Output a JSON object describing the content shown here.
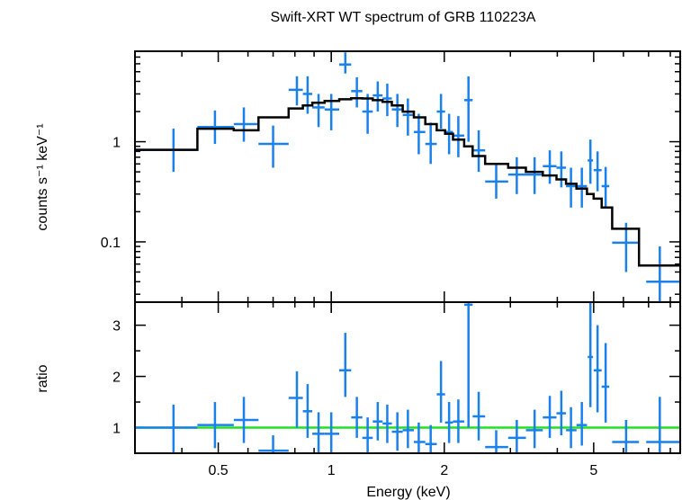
{
  "title": "Swift-XRT WT spectrum of GRB 110223A",
  "colors": {
    "data": "#1a80ec",
    "model": "#000000",
    "unity_line": "#22e022",
    "axes": "#000000"
  },
  "chart_data": [
    {
      "type": "scatter",
      "panel": "spectrum",
      "ylabel": "counts s⁻¹ keV⁻¹",
      "yscale": "log",
      "xscale": "log",
      "xlim": [
        0.3,
        8.5
      ],
      "ylim": [
        0.025,
        8.0
      ],
      "yticks": [
        {
          "value": 0.1,
          "label": "0.1"
        },
        {
          "value": 1,
          "label": "1"
        }
      ],
      "series": [
        {
          "kind": "data-errorbars",
          "points": [
            {
              "x": 0.38,
              "xlo": 0.3,
              "xhi": 0.44,
              "y": 0.83,
              "ylo": 0.5,
              "yhi": 1.35
            },
            {
              "x": 0.49,
              "xlo": 0.44,
              "xhi": 0.55,
              "y": 1.4,
              "ylo": 0.95,
              "yhi": 2.05
            },
            {
              "x": 0.585,
              "xlo": 0.55,
              "xhi": 0.64,
              "y": 1.5,
              "ylo": 1.0,
              "yhi": 2.2
            },
            {
              "x": 0.7,
              "xlo": 0.64,
              "xhi": 0.77,
              "y": 0.95,
              "ylo": 0.55,
              "yhi": 1.45
            },
            {
              "x": 0.81,
              "xlo": 0.77,
              "xhi": 0.84,
              "y": 3.3,
              "ylo": 2.3,
              "yhi": 4.5
            },
            {
              "x": 0.865,
              "xlo": 0.84,
              "xhi": 0.89,
              "y": 3.0,
              "ylo": 1.9,
              "yhi": 4.5
            },
            {
              "x": 0.925,
              "xlo": 0.89,
              "xhi": 0.96,
              "y": 2.2,
              "ylo": 1.4,
              "yhi": 3.0
            },
            {
              "x": 1.0,
              "xlo": 0.96,
              "xhi": 1.05,
              "y": 2.1,
              "ylo": 1.3,
              "yhi": 3.0
            },
            {
              "x": 1.09,
              "xlo": 1.05,
              "xhi": 1.13,
              "y": 5.9,
              "ylo": 4.8,
              "yhi": 7.8
            },
            {
              "x": 1.17,
              "xlo": 1.13,
              "xhi": 1.21,
              "y": 3.2,
              "ylo": 2.2,
              "yhi": 4.4
            },
            {
              "x": 1.25,
              "xlo": 1.21,
              "xhi": 1.29,
              "y": 2.0,
              "ylo": 1.2,
              "yhi": 3.0
            },
            {
              "x": 1.33,
              "xlo": 1.29,
              "xhi": 1.37,
              "y": 2.9,
              "ylo": 2.0,
              "yhi": 4.0
            },
            {
              "x": 1.41,
              "xlo": 1.37,
              "xhi": 1.45,
              "y": 2.7,
              "ylo": 1.8,
              "yhi": 3.8
            },
            {
              "x": 1.5,
              "xlo": 1.45,
              "xhi": 1.55,
              "y": 2.1,
              "ylo": 1.4,
              "yhi": 3.0
            },
            {
              "x": 1.6,
              "xlo": 1.55,
              "xhi": 1.66,
              "y": 1.85,
              "ylo": 1.15,
              "yhi": 2.7
            },
            {
              "x": 1.71,
              "xlo": 1.66,
              "xhi": 1.78,
              "y": 1.25,
              "ylo": 0.75,
              "yhi": 1.9
            },
            {
              "x": 1.84,
              "xlo": 1.78,
              "xhi": 1.91,
              "y": 0.95,
              "ylo": 0.6,
              "yhi": 1.55
            },
            {
              "x": 1.96,
              "xlo": 1.91,
              "xhi": 2.01,
              "y": 2.0,
              "ylo": 1.35,
              "yhi": 3.0
            },
            {
              "x": 2.06,
              "xlo": 2.01,
              "xhi": 2.11,
              "y": 1.25,
              "ylo": 0.75,
              "yhi": 1.9
            },
            {
              "x": 2.18,
              "xlo": 2.11,
              "xhi": 2.26,
              "y": 1.15,
              "ylo": 0.7,
              "yhi": 1.8
            },
            {
              "x": 2.32,
              "xlo": 2.26,
              "xhi": 2.38,
              "y": 2.6,
              "ylo": 1.0,
              "yhi": 4.5
            },
            {
              "x": 2.47,
              "xlo": 2.38,
              "xhi": 2.57,
              "y": 0.82,
              "ylo": 0.5,
              "yhi": 1.3
            },
            {
              "x": 2.75,
              "xlo": 2.57,
              "xhi": 2.96,
              "y": 0.4,
              "ylo": 0.27,
              "yhi": 0.6
            },
            {
              "x": 3.12,
              "xlo": 2.96,
              "xhi": 3.3,
              "y": 0.47,
              "ylo": 0.3,
              "yhi": 0.7
            },
            {
              "x": 3.48,
              "xlo": 3.3,
              "xhi": 3.66,
              "y": 0.47,
              "ylo": 0.3,
              "yhi": 0.7
            },
            {
              "x": 3.82,
              "xlo": 3.66,
              "xhi": 3.98,
              "y": 0.57,
              "ylo": 0.38,
              "yhi": 0.82
            },
            {
              "x": 4.1,
              "xlo": 3.98,
              "xhi": 4.22,
              "y": 0.55,
              "ylo": 0.35,
              "yhi": 0.8
            },
            {
              "x": 4.35,
              "xlo": 4.22,
              "xhi": 4.5,
              "y": 0.36,
              "ylo": 0.22,
              "yhi": 0.55
            },
            {
              "x": 4.65,
              "xlo": 4.5,
              "xhi": 4.8,
              "y": 0.36,
              "ylo": 0.22,
              "yhi": 0.55
            },
            {
              "x": 4.9,
              "xlo": 4.82,
              "xhi": 4.98,
              "y": 0.65,
              "ylo": 0.38,
              "yhi": 1.05
            },
            {
              "x": 5.12,
              "xlo": 5.0,
              "xhi": 5.25,
              "y": 0.52,
              "ylo": 0.32,
              "yhi": 0.8
            },
            {
              "x": 5.38,
              "xlo": 5.25,
              "xhi": 5.5,
              "y": 0.36,
              "ylo": 0.22,
              "yhi": 0.56
            },
            {
              "x": 6.1,
              "xlo": 5.6,
              "xhi": 6.6,
              "y": 0.098,
              "ylo": 0.05,
              "yhi": 0.155
            },
            {
              "x": 7.5,
              "xlo": 6.9,
              "xhi": 8.5,
              "y": 0.04,
              "ylo": 0.02,
              "yhi": 0.09
            }
          ]
        },
        {
          "kind": "model-step",
          "edges": [
            0.3,
            0.44,
            0.55,
            0.64,
            0.77,
            0.84,
            0.89,
            0.96,
            1.05,
            1.13,
            1.21,
            1.29,
            1.37,
            1.45,
            1.55,
            1.66,
            1.78,
            1.91,
            2.01,
            2.11,
            2.26,
            2.38,
            2.57,
            2.96,
            3.3,
            3.66,
            3.98,
            4.22,
            4.5,
            4.8,
            5.0,
            5.25,
            5.6,
            6.6,
            8.5
          ],
          "values": [
            0.83,
            1.35,
            1.3,
            1.75,
            2.15,
            2.3,
            2.45,
            2.55,
            2.65,
            2.72,
            2.7,
            2.6,
            2.5,
            2.3,
            2.0,
            1.75,
            1.5,
            1.3,
            1.2,
            1.05,
            0.9,
            0.72,
            0.6,
            0.55,
            0.5,
            0.46,
            0.42,
            0.38,
            0.34,
            0.3,
            0.27,
            0.22,
            0.135,
            0.058
          ]
        }
      ]
    },
    {
      "type": "scatter",
      "panel": "ratio",
      "xlabel": "Energy (keV)",
      "ylabel": "ratio",
      "xscale": "log",
      "xlim": [
        0.3,
        8.5
      ],
      "ylim": [
        0.5,
        3.45
      ],
      "yticks": [
        {
          "value": 1,
          "label": "1"
        },
        {
          "value": 2,
          "label": "2"
        },
        {
          "value": 3,
          "label": "3"
        }
      ],
      "xticks": [
        {
          "value": 0.5,
          "label": "0.5"
        },
        {
          "value": 1,
          "label": "1"
        },
        {
          "value": 2,
          "label": "2"
        },
        {
          "value": 5,
          "label": "5"
        }
      ],
      "reference_line": 1.0,
      "points": [
        {
          "x": 0.38,
          "xlo": 0.3,
          "xhi": 0.44,
          "y": 1.0,
          "ylo": 0.5,
          "yhi": 1.45
        },
        {
          "x": 0.49,
          "xlo": 0.44,
          "xhi": 0.55,
          "y": 1.05,
          "ylo": 0.6,
          "yhi": 1.5
        },
        {
          "x": 0.585,
          "xlo": 0.55,
          "xhi": 0.64,
          "y": 1.15,
          "ylo": 0.7,
          "yhi": 1.6
        },
        {
          "x": 0.7,
          "xlo": 0.64,
          "xhi": 0.77,
          "y": 0.55,
          "ylo": 0.5,
          "yhi": 0.85
        },
        {
          "x": 0.81,
          "xlo": 0.77,
          "xhi": 0.84,
          "y": 1.58,
          "ylo": 1.0,
          "yhi": 2.1
        },
        {
          "x": 0.865,
          "xlo": 0.84,
          "xhi": 0.89,
          "y": 1.32,
          "ylo": 0.8,
          "yhi": 1.85
        },
        {
          "x": 0.925,
          "xlo": 0.89,
          "xhi": 0.96,
          "y": 0.88,
          "ylo": 0.5,
          "yhi": 1.3
        },
        {
          "x": 1.0,
          "xlo": 0.96,
          "xhi": 1.05,
          "y": 0.88,
          "ylo": 0.5,
          "yhi": 1.3
        },
        {
          "x": 1.09,
          "xlo": 1.05,
          "xhi": 1.13,
          "y": 2.12,
          "ylo": 1.6,
          "yhi": 2.85
        },
        {
          "x": 1.17,
          "xlo": 1.13,
          "xhi": 1.21,
          "y": 1.2,
          "ylo": 0.8,
          "yhi": 1.6
        },
        {
          "x": 1.25,
          "xlo": 1.21,
          "xhi": 1.29,
          "y": 0.8,
          "ylo": 0.5,
          "yhi": 1.2
        },
        {
          "x": 1.33,
          "xlo": 1.29,
          "xhi": 1.37,
          "y": 1.12,
          "ylo": 0.75,
          "yhi": 1.5
        },
        {
          "x": 1.41,
          "xlo": 1.37,
          "xhi": 1.45,
          "y": 1.08,
          "ylo": 0.7,
          "yhi": 1.45
        },
        {
          "x": 1.5,
          "xlo": 1.45,
          "xhi": 1.55,
          "y": 0.92,
          "ylo": 0.55,
          "yhi": 1.3
        },
        {
          "x": 1.6,
          "xlo": 1.55,
          "xhi": 1.66,
          "y": 0.95,
          "ylo": 0.6,
          "yhi": 1.35
        },
        {
          "x": 1.71,
          "xlo": 1.66,
          "xhi": 1.78,
          "y": 0.72,
          "ylo": 0.5,
          "yhi": 1.1
        },
        {
          "x": 1.84,
          "xlo": 1.78,
          "xhi": 1.91,
          "y": 0.68,
          "ylo": 0.5,
          "yhi": 1.05
        },
        {
          "x": 1.96,
          "xlo": 1.91,
          "xhi": 2.01,
          "y": 1.65,
          "ylo": 1.1,
          "yhi": 2.3
        },
        {
          "x": 2.06,
          "xlo": 2.01,
          "xhi": 2.11,
          "y": 1.1,
          "ylo": 0.7,
          "yhi": 1.5
        },
        {
          "x": 2.18,
          "xlo": 2.11,
          "xhi": 2.26,
          "y": 1.12,
          "ylo": 0.7,
          "yhi": 1.55
        },
        {
          "x": 2.32,
          "xlo": 2.26,
          "xhi": 2.38,
          "y": 3.4,
          "ylo": 1.0,
          "yhi": 3.45
        },
        {
          "x": 2.47,
          "xlo": 2.38,
          "xhi": 2.57,
          "y": 1.22,
          "ylo": 0.75,
          "yhi": 1.7
        },
        {
          "x": 2.75,
          "xlo": 2.57,
          "xhi": 2.96,
          "y": 0.62,
          "ylo": 0.5,
          "yhi": 0.95
        },
        {
          "x": 3.12,
          "xlo": 2.96,
          "xhi": 3.3,
          "y": 0.8,
          "ylo": 0.5,
          "yhi": 1.15
        },
        {
          "x": 3.48,
          "xlo": 3.3,
          "xhi": 3.66,
          "y": 0.95,
          "ylo": 0.6,
          "yhi": 1.35
        },
        {
          "x": 3.82,
          "xlo": 3.66,
          "xhi": 3.98,
          "y": 1.2,
          "ylo": 0.8,
          "yhi": 1.62
        },
        {
          "x": 4.1,
          "xlo": 3.98,
          "xhi": 4.22,
          "y": 1.28,
          "ylo": 0.85,
          "yhi": 1.72
        },
        {
          "x": 4.35,
          "xlo": 4.22,
          "xhi": 4.5,
          "y": 0.95,
          "ylo": 0.6,
          "yhi": 1.4
        },
        {
          "x": 4.65,
          "xlo": 4.5,
          "xhi": 4.8,
          "y": 1.05,
          "ylo": 0.65,
          "yhi": 1.5
        },
        {
          "x": 4.9,
          "xlo": 4.82,
          "xhi": 4.98,
          "y": 2.38,
          "ylo": 1.4,
          "yhi": 3.45
        },
        {
          "x": 5.12,
          "xlo": 5.0,
          "xhi": 5.25,
          "y": 2.12,
          "ylo": 1.3,
          "yhi": 3.0
        },
        {
          "x": 5.38,
          "xlo": 5.25,
          "xhi": 5.5,
          "y": 1.8,
          "ylo": 1.1,
          "yhi": 2.65
        },
        {
          "x": 6.1,
          "xlo": 5.6,
          "xhi": 6.6,
          "y": 0.72,
          "ylo": 0.5,
          "yhi": 1.15
        },
        {
          "x": 7.5,
          "xlo": 6.9,
          "xhi": 8.5,
          "y": 0.72,
          "ylo": 0.5,
          "yhi": 1.6
        }
      ]
    }
  ]
}
